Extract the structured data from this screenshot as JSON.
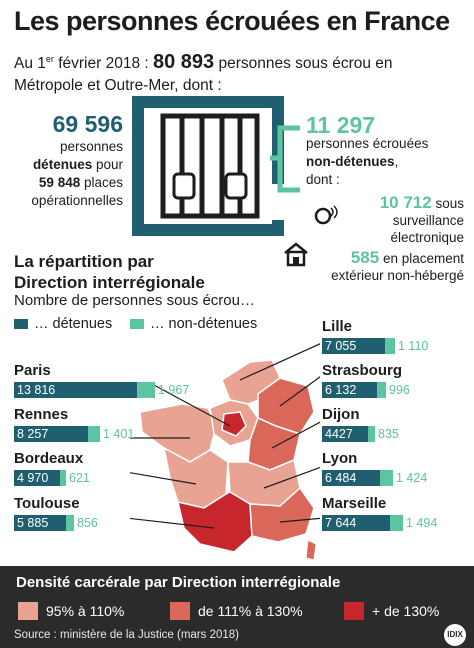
{
  "title": "Les personnes écrouées en France",
  "intro": {
    "prefix": "Au 1",
    "sup": "er",
    "date": " février 2018 : ",
    "total": "80 893",
    "line1_rest": " personnes sous écrou en",
    "line2": "Métropole et Outre-Mer, dont :"
  },
  "detained": {
    "number": "69 596",
    "line1": "personnes",
    "line2_bold": "détenues",
    "line2_rest": " pour",
    "line3_bold": "59 848",
    "line3_rest": " places",
    "line4": "opérationnelles"
  },
  "non_detained": {
    "number": "11 297",
    "line1": "personnes écrouées",
    "line2_bold": "non-détenues",
    "line2_rest": ",",
    "line3": "dont :",
    "electronic_number": "10 712",
    "electronic_l1": " sous",
    "electronic_l2": "surveillance",
    "electronic_l3": "électronique",
    "placement_number": "585",
    "placement_l1": " en placement",
    "placement_l2": "extérieur non-hébergé"
  },
  "section": {
    "title_l1": "La répartition par",
    "title_l2": "Direction interrégionale",
    "subtitle": "Nombre de personnes sous écrou…",
    "legend_detained": "… détenues",
    "legend_non_detained": "… non-détenues"
  },
  "colors": {
    "detained": "#1f5f70",
    "non_detained": "#5cc4a1",
    "density_low": "#e8a393",
    "density_mid": "#d9675a",
    "density_high": "#c7262d"
  },
  "regions": [
    {
      "name": "Paris",
      "detained": 13816,
      "detained_label": "13 816",
      "non_detained": 1967,
      "non_detained_label": "1 967"
    },
    {
      "name": "Rennes",
      "detained": 8257,
      "detained_label": "8 257",
      "non_detained": 1401,
      "non_detained_label": "1 401"
    },
    {
      "name": "Bordeaux",
      "detained": 4970,
      "detained_label": "4 970",
      "non_detained": 621,
      "non_detained_label": "621"
    },
    {
      "name": "Toulouse",
      "detained": 5885,
      "detained_label": "5 885",
      "non_detained": 856,
      "non_detained_label": "856"
    },
    {
      "name": "Lille",
      "detained": 7055,
      "detained_label": "7 055",
      "non_detained": 1110,
      "non_detained_label": "1 110"
    },
    {
      "name": "Strasbourg",
      "detained": 6132,
      "detained_label": "6 132",
      "non_detained": 996,
      "non_detained_label": "996"
    },
    {
      "name": "Dijon",
      "detained": 4427,
      "detained_label": "4427",
      "non_detained": 835,
      "non_detained_label": "835"
    },
    {
      "name": "Lyon",
      "detained": 6484,
      "detained_label": "6 484",
      "non_detained": 1424,
      "non_detained_label": "1 424"
    },
    {
      "name": "Marseille",
      "detained": 7644,
      "detained_label": "7 644",
      "non_detained": 1494,
      "non_detained_label": "1 494"
    }
  ],
  "density": {
    "title": "Densité carcérale par Direction interrégionale",
    "low": "95% à 110%",
    "mid": "de 111% à 130%",
    "high": "+ de 130%"
  },
  "source": "Source : ministère de la Justice (mars 2018)",
  "logo": "IDIX"
}
